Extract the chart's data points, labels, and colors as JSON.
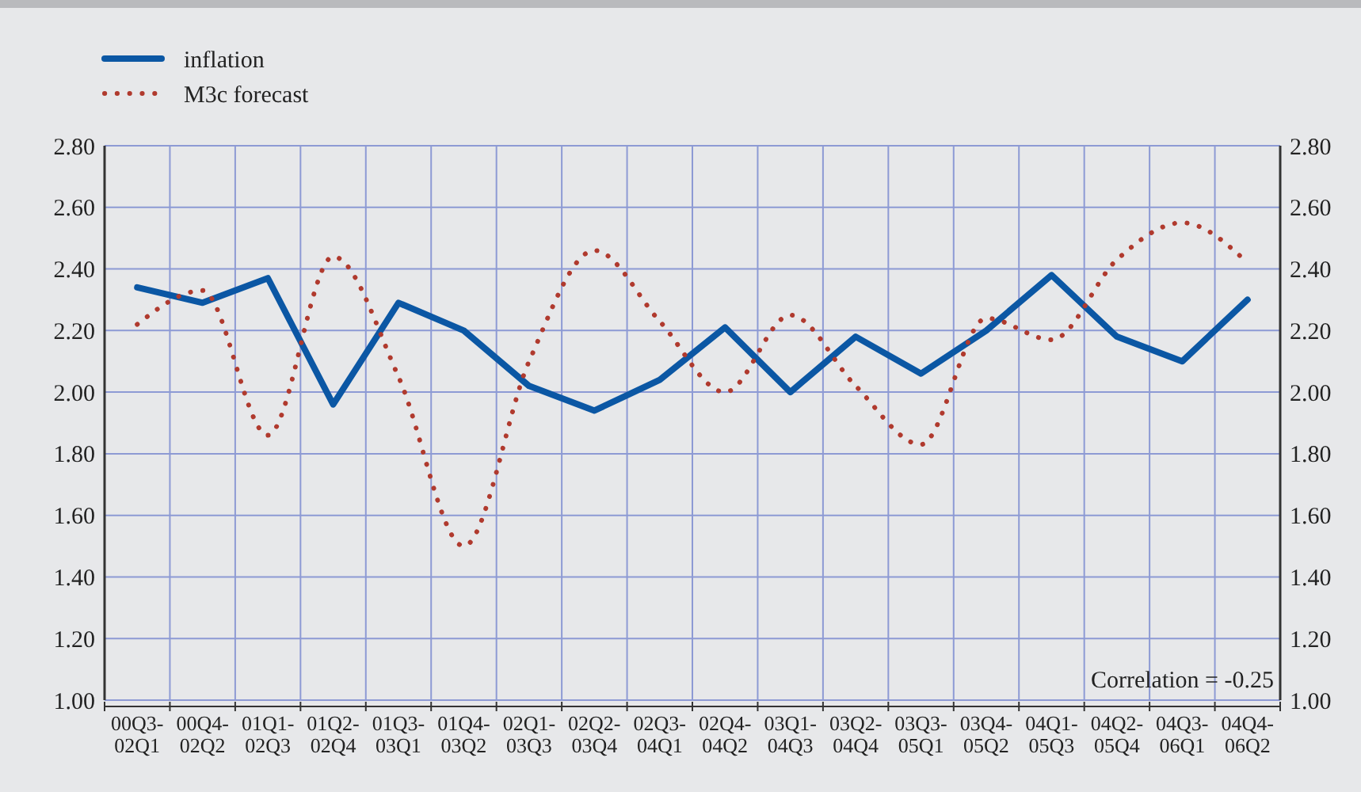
{
  "chart_data": {
    "type": "line",
    "categories": [
      "00Q3-02Q1",
      "00Q4-02Q2",
      "01Q1-02Q3",
      "01Q2-02Q4",
      "01Q3-03Q1",
      "01Q4-03Q2",
      "02Q1-03Q3",
      "02Q2-03Q4",
      "02Q3-04Q1",
      "02Q4-04Q2",
      "03Q1-04Q3",
      "03Q2-04Q4",
      "03Q3-05Q1",
      "03Q4-05Q2",
      "04Q1-05Q3",
      "04Q2-05Q4",
      "04Q3-06Q1",
      "04Q4-06Q2"
    ],
    "series": [
      {
        "name": "inflation",
        "color": "#0b57a4",
        "line_style": "solid",
        "values": [
          2.34,
          2.29,
          2.37,
          1.96,
          2.29,
          2.2,
          2.02,
          1.94,
          2.04,
          2.21,
          2.0,
          2.18,
          2.06,
          2.2,
          2.38,
          2.18,
          2.1,
          2.3
        ]
      },
      {
        "name": "M3c forecast",
        "color": "#b03a2e",
        "line_style": "dotted",
        "values": [
          2.22,
          2.33,
          1.86,
          2.44,
          2.05,
          1.5,
          2.1,
          2.46,
          2.23,
          2.0,
          2.25,
          2.02,
          1.83,
          2.24,
          2.17,
          2.43,
          2.55,
          2.42
        ]
      }
    ],
    "ylim": [
      1.0,
      2.8
    ],
    "yticks": [
      {
        "value": 1.0,
        "label": "1.00"
      },
      {
        "value": 1.2,
        "label": "1.20"
      },
      {
        "value": 1.4,
        "label": "1.40"
      },
      {
        "value": 1.6,
        "label": "1.60"
      },
      {
        "value": 1.8,
        "label": "1.80"
      },
      {
        "value": 2.0,
        "label": "2.00"
      },
      {
        "value": 2.2,
        "label": "2.20"
      },
      {
        "value": 2.4,
        "label": "2.40"
      },
      {
        "value": 2.6,
        "label": "2.60"
      },
      {
        "value": 2.8,
        "label": "2.80"
      }
    ],
    "y2lim": [
      1.0,
      2.8
    ],
    "y2ticks": [
      {
        "value": 1.0,
        "label": "1.00"
      },
      {
        "value": 1.2,
        "label": "1.20"
      },
      {
        "value": 1.4,
        "label": "1.40"
      },
      {
        "value": 1.6,
        "label": "1.60"
      },
      {
        "value": 1.8,
        "label": "1.80"
      },
      {
        "value": 2.0,
        "label": "2.00"
      },
      {
        "value": 2.2,
        "label": "2.20"
      },
      {
        "value": 2.4,
        "label": "2.40"
      },
      {
        "value": 2.6,
        "label": "2.60"
      },
      {
        "value": 2.8,
        "label": "2.80"
      }
    ],
    "grid": true,
    "legend": "top left",
    "annotations": [
      "Correlation = -0.25"
    ]
  }
}
